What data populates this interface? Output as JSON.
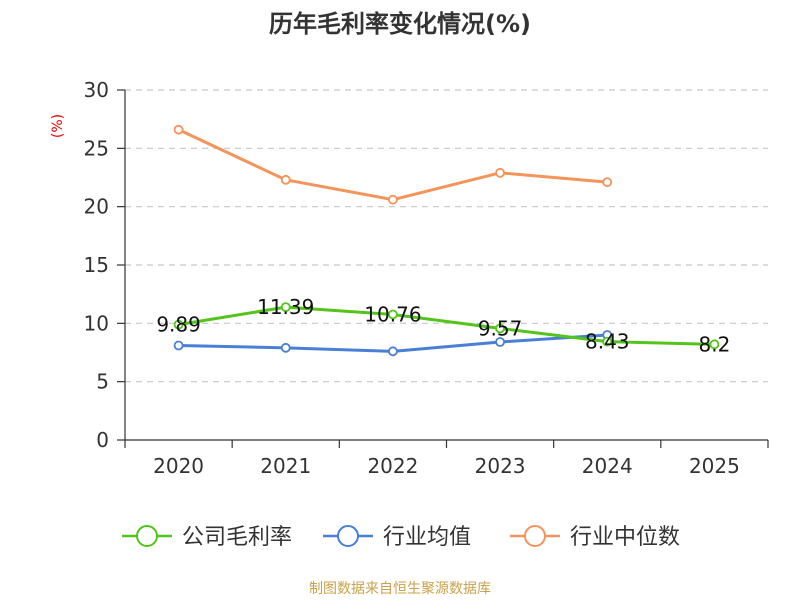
{
  "chart_data": {
    "type": "line",
    "title": "历年毛利率变化情况(%)",
    "ylabel": "(%)",
    "xlabel": "",
    "categories": [
      "2020",
      "2021",
      "2022",
      "2023",
      "2024",
      "2025"
    ],
    "ylim": [
      0,
      30
    ],
    "yticks": [
      0,
      5,
      10,
      15,
      20,
      25,
      30
    ],
    "grid": true,
    "legend_position": "bottom",
    "series": [
      {
        "name": "公司毛利率",
        "color": "#52c41a",
        "values": [
          9.89,
          11.39,
          10.76,
          9.57,
          8.43,
          8.2
        ],
        "labels": [
          "9.89",
          "11.39",
          "10.76",
          "9.57",
          "8.43",
          "8.2"
        ]
      },
      {
        "name": "行业均值",
        "color": "#4a7fd6",
        "values": [
          8.1,
          7.9,
          7.6,
          8.4,
          9.0,
          null
        ]
      },
      {
        "name": "行业中位数",
        "color": "#f4935a",
        "values": [
          26.6,
          22.3,
          20.6,
          22.9,
          22.1,
          null
        ]
      }
    ],
    "source": "制图数据来自恒生聚源数据库"
  }
}
